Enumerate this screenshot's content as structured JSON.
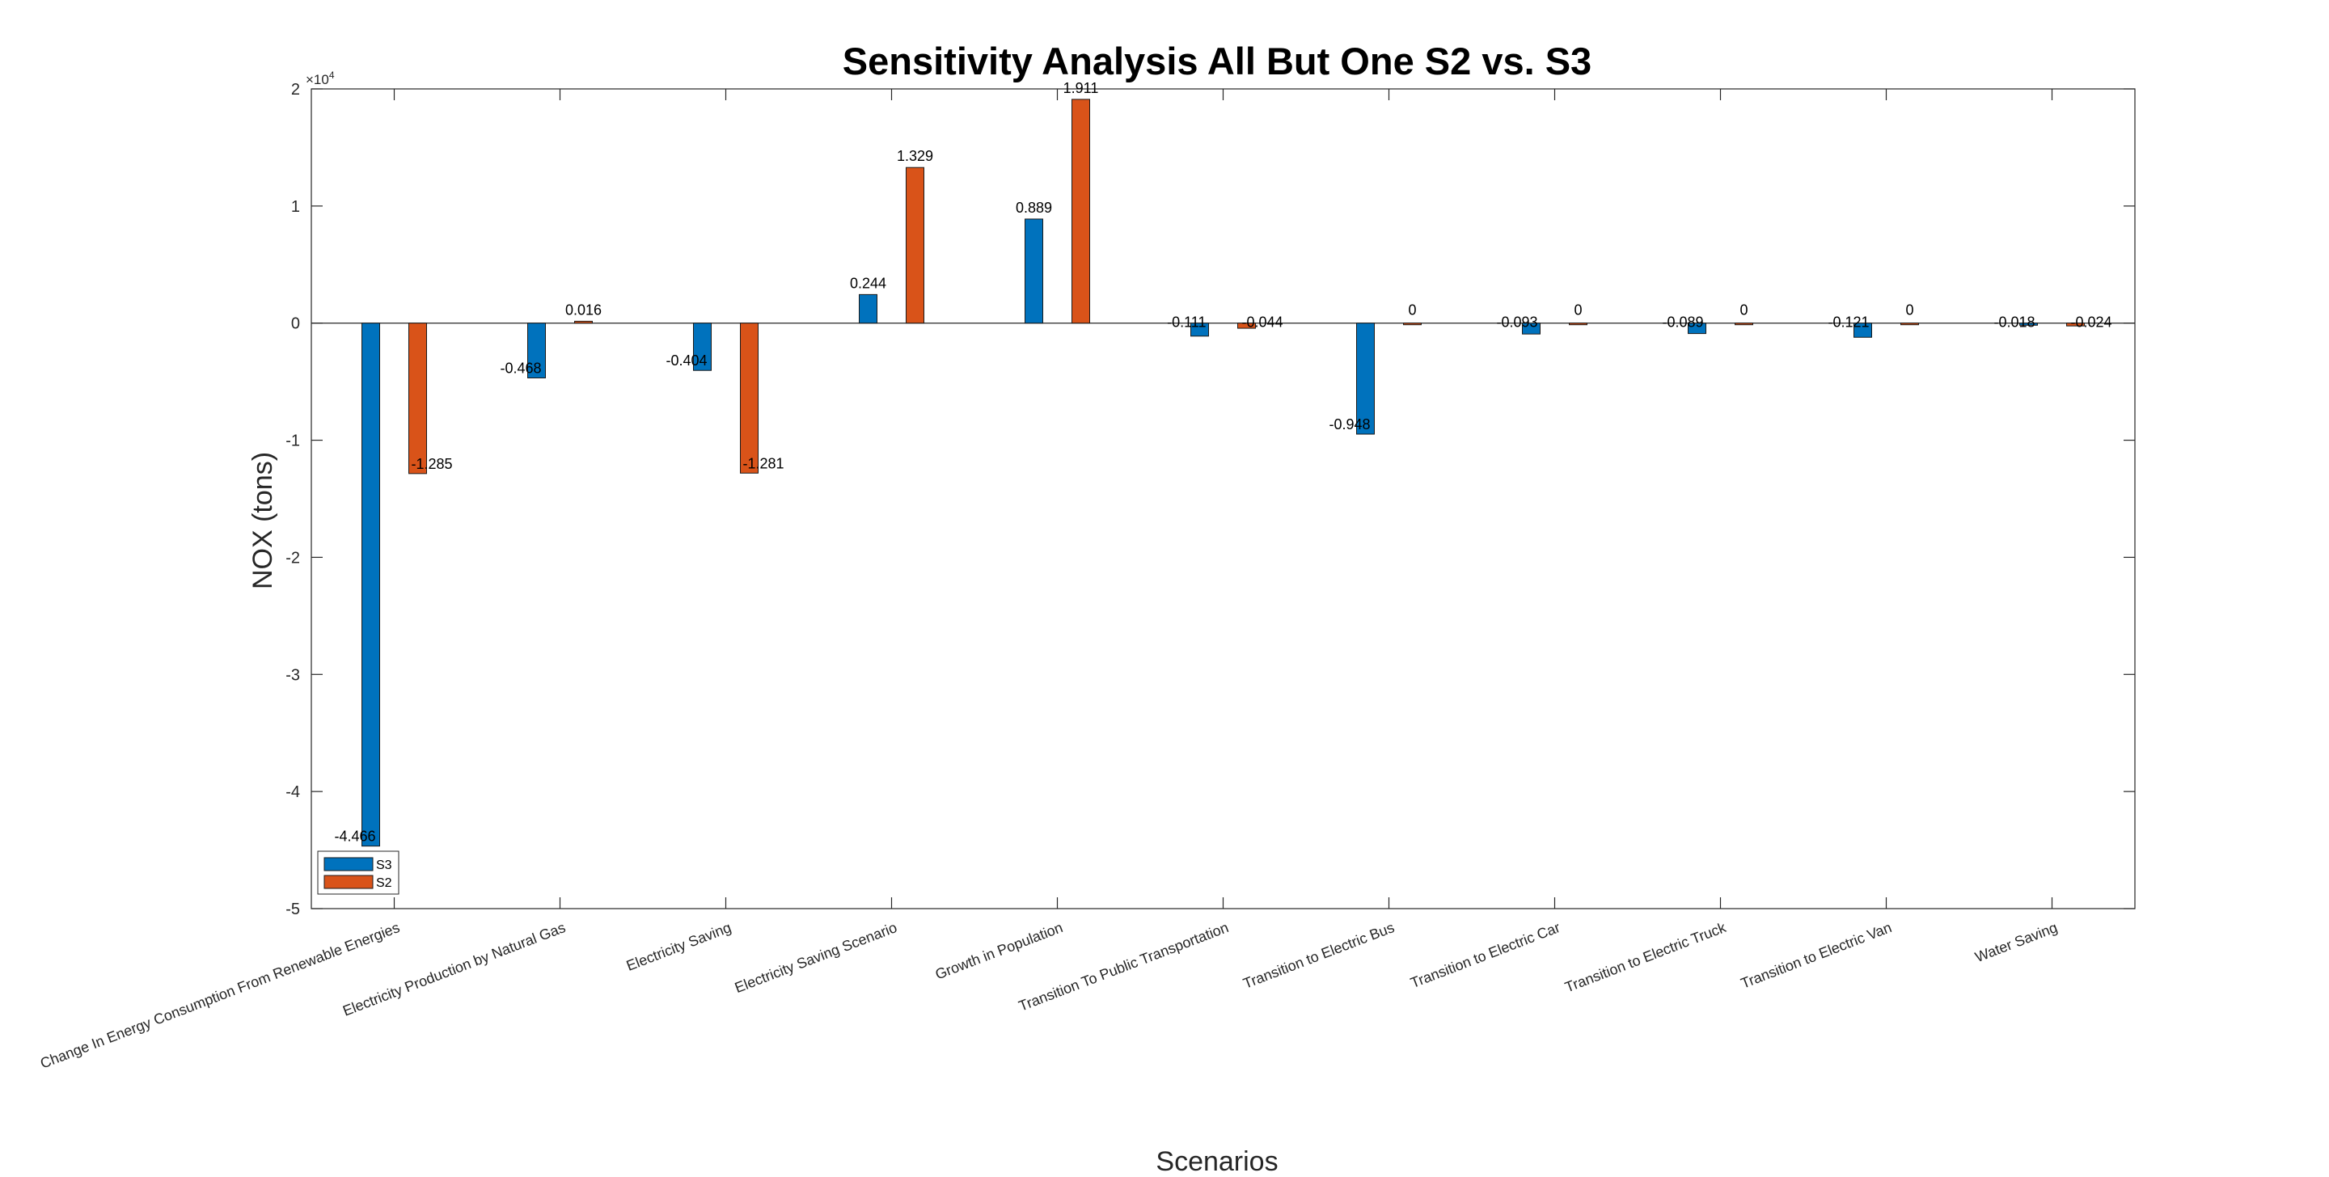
{
  "chart_data": {
    "type": "bar",
    "title": "Sensitivity Analysis All But One S2 vs. S3",
    "xlabel": "Scenarios",
    "ylabel": "NOX (tons)",
    "y_scale_label": "×10",
    "y_scale_exponent": "4",
    "ylim": [
      -5,
      2
    ],
    "yticks": [
      "-5",
      "-4",
      "-3",
      "-2",
      "-1",
      "0",
      "1",
      "2"
    ],
    "grid": false,
    "legend_position": "bottom-left",
    "categories": [
      "Change In Energy Consumption From Renewable Energies",
      "Electricity Production by Natural Gas",
      "Electricity Saving",
      "Electricity Saving Scenario",
      "Growth in Population",
      "Transition To Public Transportation",
      "Transition to Electric Bus",
      "Transition to Electric Car",
      "Transition to Electric Truck",
      "Transition to Electric Van",
      "Water Saving"
    ],
    "series": [
      {
        "name": "S3",
        "color": "#0072BD",
        "values": [
          -4.466,
          -0.468,
          -0.404,
          0.244,
          0.889,
          -0.111,
          -0.948,
          -0.093,
          -0.089,
          -0.121,
          -0.018
        ],
        "labels": [
          "-4.466",
          "-0.468",
          "-0.404",
          "0.244",
          "0.889",
          "-0.111",
          "-0.948",
          "-0.093",
          "-0.089",
          "-0.121",
          "-0.018"
        ]
      },
      {
        "name": "S2",
        "color": "#D95319",
        "values": [
          -1.285,
          0.016,
          -1.281,
          1.329,
          1.911,
          -0.044,
          0,
          0,
          0,
          0,
          -0.024
        ],
        "labels": [
          "-1.285",
          "0.016",
          "-1.281",
          "1.329",
          "1.911",
          "-0.044",
          "0",
          "0",
          "0",
          "0",
          "-0.024"
        ]
      }
    ]
  }
}
